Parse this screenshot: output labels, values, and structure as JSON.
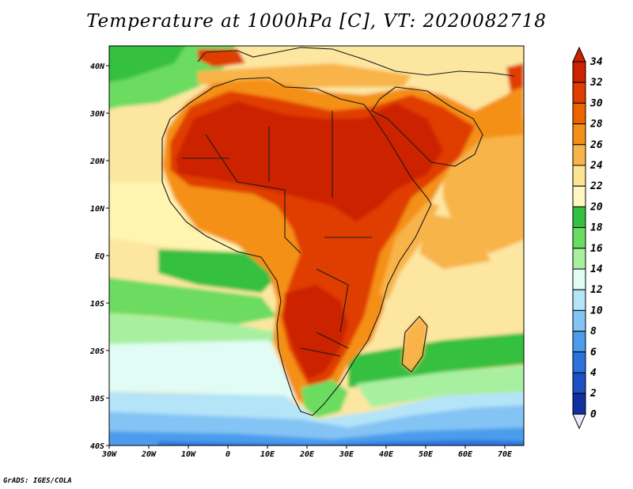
{
  "title": "Temperature at 1000hPa [C], VT: 2020082718",
  "credit": "GrADS: IGES/COLA",
  "map": {
    "lon_labels": [
      "30W",
      "20W",
      "10W",
      "0",
      "10E",
      "20E",
      "30E",
      "40E",
      "50E",
      "60E",
      "70E"
    ],
    "lat_labels": [
      "40N",
      "30N",
      "20N",
      "10N",
      "EQ",
      "10S",
      "20S",
      "30S",
      "40S"
    ]
  },
  "colorbar": {
    "labels": [
      "34",
      "32",
      "30",
      "28",
      "26",
      "24",
      "22",
      "20",
      "18",
      "16",
      "14",
      "12",
      "10",
      "8",
      "6",
      "4",
      "2",
      "0"
    ],
    "colors": [
      "#cc2200",
      "#e03c00",
      "#ec6400",
      "#f49018",
      "#f8b448",
      "#fce490",
      "#fff8c0",
      "#34c040",
      "#6cdc60",
      "#a8f0a0",
      "#e0fcf4",
      "#b4e4f8",
      "#84c4f4",
      "#4c9cec",
      "#2c74dc",
      "#1c50c4",
      "#1030a0",
      "#081c6c"
    ]
  }
}
